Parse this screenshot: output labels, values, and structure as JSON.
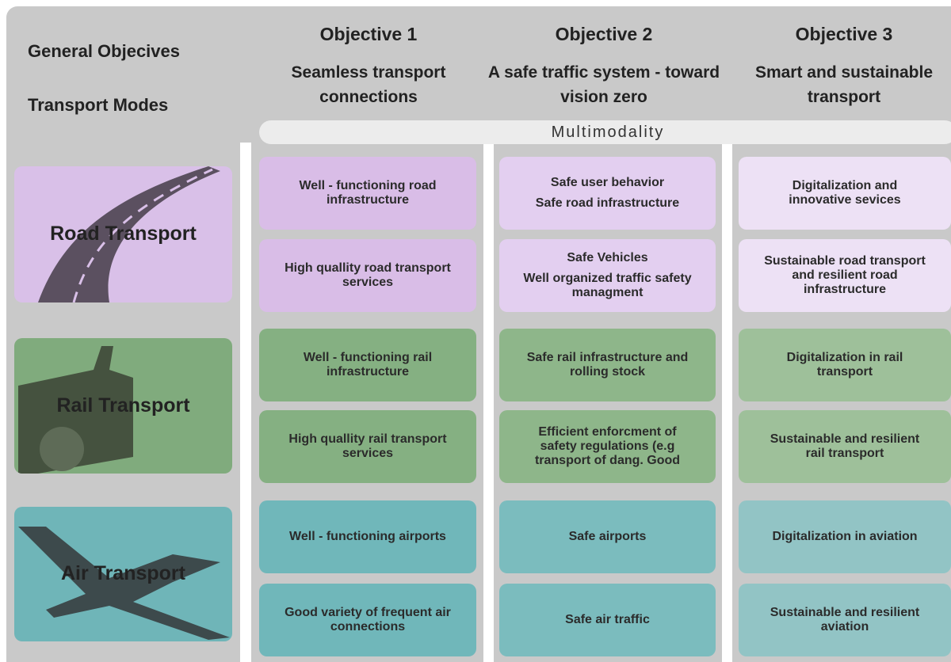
{
  "header": {
    "general_objectives": "General Objecives",
    "transport_modes": "Transport Modes"
  },
  "objectives": [
    {
      "title": "Objective 1",
      "subtitle": "Seamless transport connections"
    },
    {
      "title": "Objective 2",
      "subtitle": "A safe traffic system - toward vision zero"
    },
    {
      "title": "Objective 3",
      "subtitle": "Smart and sustainable transport"
    }
  ],
  "multimodality": "Multimodality",
  "modes": [
    {
      "label": "Road Transport",
      "rows": [
        [
          [
            "Well - functioning road infrastructure"
          ],
          [
            "Safe user behavior",
            "Safe road infrastructure"
          ],
          [
            "Digitalization and innovative sevices"
          ]
        ],
        [
          [
            "High quallity road transport services"
          ],
          [
            "Safe Vehicles",
            "Well organized traffic safety managment"
          ],
          [
            "Sustainable road transport and resilient road infrastructure"
          ]
        ]
      ]
    },
    {
      "label": "Rail Transport",
      "rows": [
        [
          [
            "Well - functioning rail infrastructure"
          ],
          [
            "Safe rail infrastructure and rolling stock"
          ],
          [
            "Digitalization in rail transport"
          ]
        ],
        [
          [
            "High quallity rail transport services"
          ],
          [
            "Efficient enforcment of safety regulations (e.g transport of dang. Good"
          ],
          [
            "Sustainable and resilient rail transport"
          ]
        ]
      ]
    },
    {
      "label": "Air Transport",
      "rows": [
        [
          [
            "Well - functioning airports"
          ],
          [
            "Safe airports"
          ],
          [
            "Digitalization in aviation"
          ]
        ],
        [
          [
            "Good variety of frequent air connections"
          ],
          [
            "Safe air traffic"
          ],
          [
            "Sustainable and resilient aviation"
          ]
        ]
      ]
    }
  ]
}
